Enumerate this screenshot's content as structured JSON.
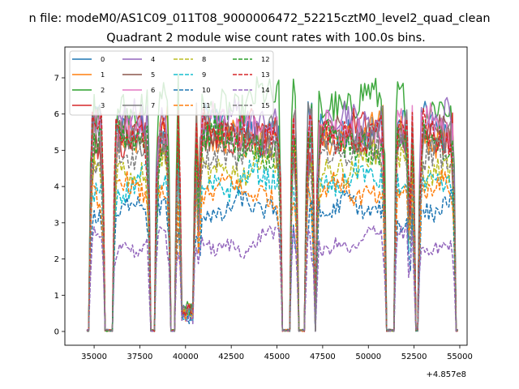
{
  "figure": {
    "suptitle": "n file: modeM0/AS1C09_011T08_9000006472_52215cztM0_level2_quad_clean",
    "title": "Quadrant 2 module wise count rates with 100.0s bins.",
    "offset_label": "+4.857e8"
  },
  "chart_data": {
    "type": "line",
    "title": "Quadrant 2 module wise count rates with 100.0s bins.",
    "x_offset": 485700000,
    "xlim": [
      33400,
      55400
    ],
    "ylim": [
      -0.38,
      7.85
    ],
    "x_ticks": [
      35000,
      37500,
      40000,
      42500,
      45000,
      47500,
      50000,
      52500,
      55000
    ],
    "x_tick_labels": [
      "35000",
      "37500",
      "40000",
      "42500",
      "45000",
      "47500",
      "50000",
      "52500",
      "55000"
    ],
    "y_ticks": [
      0,
      1,
      2,
      3,
      4,
      5,
      6,
      7
    ],
    "y_tick_labels": [
      "0",
      "1",
      "2",
      "3",
      "4",
      "5",
      "6",
      "7"
    ],
    "legend_position": "upper-left",
    "legend_columns": 4,
    "x_bin_seconds": 100,
    "visibility_windows": [
      {
        "start": 34800,
        "end": 35500
      },
      {
        "start": 36100,
        "end": 38000
      },
      {
        "start": 38400,
        "end": 39100
      },
      {
        "start": 39500,
        "end": 39700
      },
      {
        "start": 40500,
        "end": 40700
      },
      {
        "start": 40750,
        "end": 45200
      },
      {
        "start": 45750,
        "end": 46100
      },
      {
        "start": 46600,
        "end": 47000
      },
      {
        "start": 47200,
        "end": 50900
      },
      {
        "start": 51450,
        "end": 52200
      },
      {
        "start": 52300,
        "end": 52500
      },
      {
        "start": 52800,
        "end": 54700
      }
    ],
    "dip_windows": [
      {
        "start": 39750,
        "end": 40400,
        "level": 0.6
      }
    ],
    "series": [
      {
        "name": "0",
        "color": "#1f77b4",
        "dash": "solid",
        "level": 5.6
      },
      {
        "name": "1",
        "color": "#ff7f0e",
        "dash": "solid",
        "level": 5.5
      },
      {
        "name": "2",
        "color": "#2ca02c",
        "dash": "solid",
        "level": 6.3
      },
      {
        "name": "3",
        "color": "#d62728",
        "dash": "solid",
        "level": 5.4
      },
      {
        "name": "4",
        "color": "#9467bd",
        "dash": "solid",
        "level": 5.7
      },
      {
        "name": "5",
        "color": "#8c564b",
        "dash": "solid",
        "level": 5.3
      },
      {
        "name": "6",
        "color": "#e377c2",
        "dash": "solid",
        "level": 5.6
      },
      {
        "name": "7",
        "color": "#7f7f7f",
        "dash": "solid",
        "level": 5.5
      },
      {
        "name": "8",
        "color": "#bcbd22",
        "dash": "dashed",
        "level": 4.6
      },
      {
        "name": "9",
        "color": "#17becf",
        "dash": "dashed",
        "level": 4.1
      },
      {
        "name": "10",
        "color": "#1f77b4",
        "dash": "dashed",
        "level": 3.3
      },
      {
        "name": "11",
        "color": "#ff7f0e",
        "dash": "dashed",
        "level": 3.8
      },
      {
        "name": "12",
        "color": "#2ca02c",
        "dash": "dashed",
        "level": 5.2
      },
      {
        "name": "13",
        "color": "#d62728",
        "dash": "dashed",
        "level": 5.5
      },
      {
        "name": "14",
        "color": "#9467bd",
        "dash": "dashed",
        "level": 2.5
      },
      {
        "name": "15",
        "color": "#7f7f7f",
        "dash": "dashed",
        "level": 5.0
      }
    ]
  }
}
